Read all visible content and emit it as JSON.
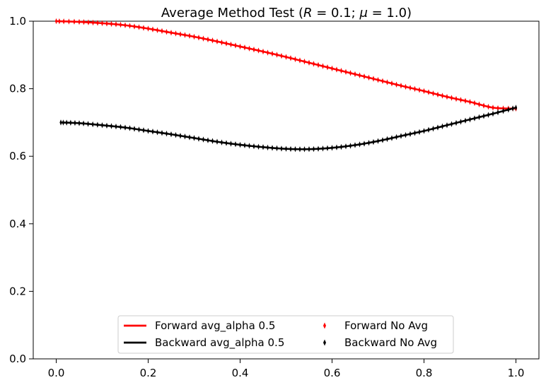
{
  "chart_data": {
    "type": "line",
    "title": {
      "prefix": "Average Method Test (",
      "r_symbol": "R",
      "r_value": " = 0.1; ",
      "mu_symbol": "μ",
      "mu_value": " = 1.0)"
    },
    "xlabel": "",
    "ylabel": "",
    "xlim": [
      -0.05,
      1.05
    ],
    "ylim": [
      0.0,
      1.0
    ],
    "xticks": [
      "0.0",
      "0.2",
      "0.4",
      "0.6",
      "0.8",
      "1.0"
    ],
    "yticks": [
      "0.0",
      "0.2",
      "0.4",
      "0.6",
      "0.8",
      "1.0"
    ],
    "grid": false,
    "legend_position": "lower center",
    "series": [
      {
        "name": "Forward avg_alpha 0.5",
        "style": "line",
        "color": "#ff0000",
        "x": [
          0.0,
          0.05,
          0.1,
          0.15,
          0.2,
          0.25,
          0.3,
          0.35,
          0.4,
          0.45,
          0.5,
          0.55,
          0.6,
          0.65,
          0.7,
          0.75,
          0.8,
          0.85,
          0.9,
          0.95,
          1.0
        ],
        "y": [
          1.0,
          0.998,
          0.994,
          0.988,
          0.978,
          0.966,
          0.954,
          0.94,
          0.925,
          0.91,
          0.894,
          0.877,
          0.86,
          0.843,
          0.826,
          0.809,
          0.793,
          0.776,
          0.761,
          0.744,
          0.741
        ]
      },
      {
        "name": "Backward avg_alpha 0.5",
        "style": "line",
        "color": "#000000",
        "x": [
          0.01,
          0.05,
          0.1,
          0.15,
          0.2,
          0.25,
          0.3,
          0.35,
          0.4,
          0.45,
          0.5,
          0.55,
          0.6,
          0.65,
          0.7,
          0.75,
          0.8,
          0.85,
          0.9,
          0.95,
          1.0
        ],
        "y": [
          0.7,
          0.698,
          0.692,
          0.685,
          0.675,
          0.665,
          0.654,
          0.643,
          0.634,
          0.627,
          0.622,
          0.621,
          0.625,
          0.633,
          0.645,
          0.66,
          0.675,
          0.692,
          0.709,
          0.726,
          0.744
        ]
      },
      {
        "name": "Forward No Avg",
        "style": "marker",
        "marker": "thin_diamond",
        "color": "#ff0000",
        "ref_series": 0
      },
      {
        "name": "Backward No Avg",
        "style": "marker",
        "marker": "thin_diamond",
        "color": "#000000",
        "ref_series": 1
      }
    ]
  }
}
